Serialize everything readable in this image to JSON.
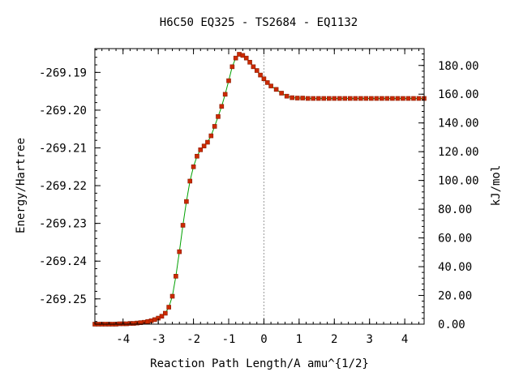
{
  "chart_data": {
    "type": "line",
    "title": "H6C50   EQ325 - TS2684 - EQ1132",
    "xlabel": "Reaction Path Length/A amu^{1/2}",
    "ylabel": "Energy/Hartree",
    "y2label": "kJ/mol",
    "xlim": [
      -4.8,
      4.55
    ],
    "ylim": [
      -269.2567,
      -269.1837
    ],
    "y2lim": [
      0.0,
      191.7
    ],
    "x_ticks": [
      -4,
      -3,
      -2,
      -1,
      0,
      1,
      2,
      3,
      4
    ],
    "x_tick_labels": [
      "-4",
      "-3",
      "-2",
      "-1",
      "0",
      "1",
      "2",
      "3",
      "4"
    ],
    "y_ticks": [
      -269.19,
      -269.2,
      -269.21,
      -269.22,
      -269.23,
      -269.24,
      -269.25
    ],
    "y_tick_labels": [
      "-269.19",
      "-269.20",
      "-269.21",
      "-269.22",
      "-269.23",
      "-269.24",
      "-269.25"
    ],
    "y2_ticks": [
      0,
      20,
      40,
      60,
      80,
      100,
      120,
      140,
      160,
      180
    ],
    "y2_tick_labels": [
      "0.00",
      "20.00",
      "40.00",
      "60.00",
      "80.00",
      "100.00",
      "120.00",
      "140.00",
      "160.00",
      "180.00"
    ],
    "ts_marker_x": 0.0,
    "grid": false,
    "colors": {
      "line": "#00a000",
      "marker": "#cc2a00",
      "ts_line": "#999999"
    },
    "series": [
      {
        "x": [
          -4.8,
          -4.7,
          -4.6,
          -4.5,
          -4.4,
          -4.3,
          -4.2,
          -4.1,
          -4.0,
          -3.9,
          -3.8,
          -3.7,
          -3.6,
          -3.5,
          -3.4,
          -3.3,
          -3.2,
          -3.1,
          -3.0,
          -2.9,
          -2.8,
          -2.7,
          -2.6,
          -2.5,
          -2.4,
          -2.3,
          -2.2,
          -2.1,
          -2.0,
          -1.9,
          -1.8,
          -1.7,
          -1.6,
          -1.5,
          -1.4,
          -1.3,
          -1.2,
          -1.1,
          -1.0,
          -0.9,
          -0.8,
          -0.7,
          -0.6,
          -0.5,
          -0.4,
          -0.3,
          -0.2,
          -0.1,
          0.0,
          0.1,
          0.2,
          0.35,
          0.5,
          0.65,
          0.8,
          0.95,
          1.1,
          1.25,
          1.4,
          1.55,
          1.7,
          1.85,
          2.0,
          2.15,
          2.3,
          2.45,
          2.6,
          2.75,
          2.9,
          3.05,
          3.2,
          3.35,
          3.5,
          3.65,
          3.8,
          3.95,
          4.1,
          4.25,
          4.4,
          4.55
        ],
        "y": [
          -269.2567,
          -269.2567,
          -269.2567,
          -269.2567,
          -269.2567,
          -269.2567,
          -269.2567,
          -269.2566,
          -269.2566,
          -269.2566,
          -269.2565,
          -269.2565,
          -269.2564,
          -269.2563,
          -269.2562,
          -269.256,
          -269.2558,
          -269.2555,
          -269.2551,
          -269.2546,
          -269.2538,
          -269.2522,
          -269.2493,
          -269.244,
          -269.2375,
          -269.2305,
          -269.2242,
          -269.2188,
          -269.215,
          -269.2122,
          -269.2105,
          -269.2095,
          -269.2085,
          -269.2068,
          -269.2043,
          -269.2017,
          -269.199,
          -269.1958,
          -269.1922,
          -269.1885,
          -269.1862,
          -269.1852,
          -269.1855,
          -269.1862,
          -269.1873,
          -269.1885,
          -269.1895,
          -269.1907,
          -269.1917,
          -269.1927,
          -269.1936,
          -269.1945,
          -269.1955,
          -269.1963,
          -269.1967,
          -269.1968,
          -269.1968,
          -269.1969,
          -269.1969,
          -269.1969,
          -269.1969,
          -269.1969,
          -269.1969,
          -269.1969,
          -269.1969,
          -269.1969,
          -269.1969,
          -269.1969,
          -269.1969,
          -269.1969,
          -269.1969,
          -269.1969,
          -269.1969,
          -269.1969,
          -269.1969,
          -269.1969,
          -269.1969,
          -269.1969,
          -269.1969,
          -269.1969
        ]
      }
    ]
  }
}
